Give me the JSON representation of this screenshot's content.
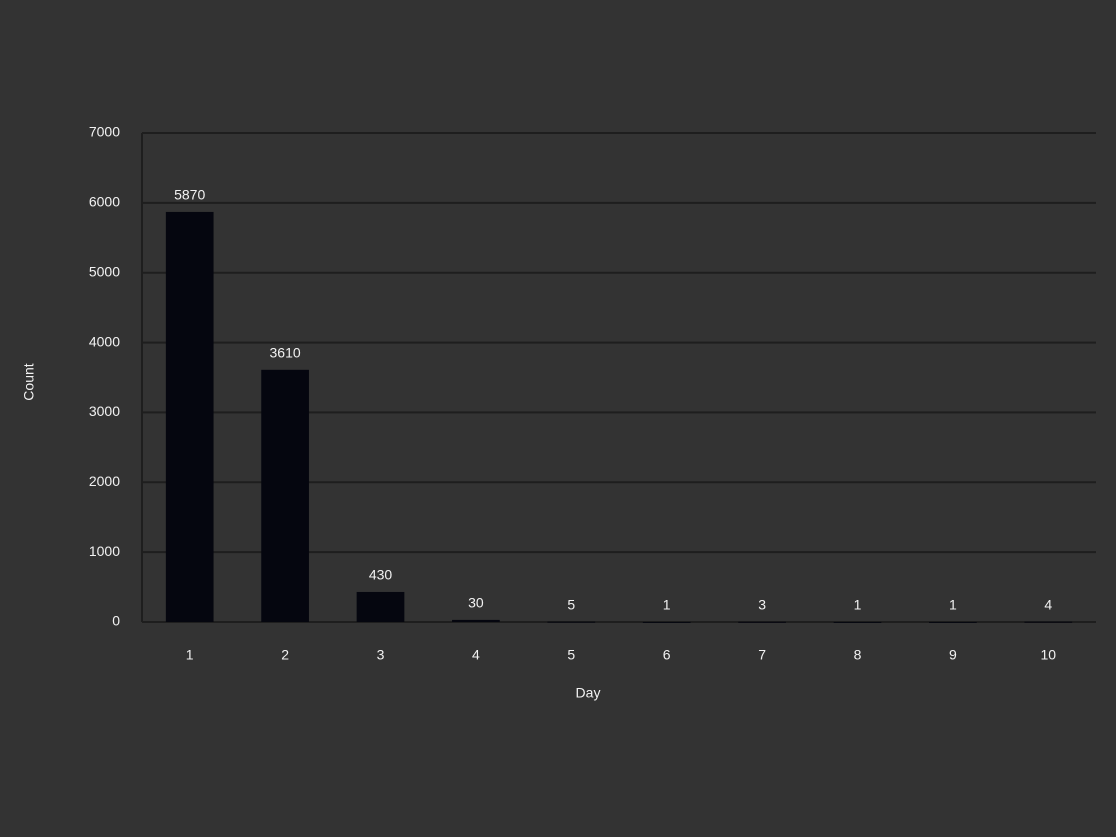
{
  "chart_data": {
    "type": "bar",
    "x_label": "Day",
    "y_label": "Count",
    "categories": [
      "1",
      "2",
      "3",
      "4",
      "5",
      "6",
      "7",
      "8",
      "9",
      "10"
    ],
    "values": [
      5870,
      3610,
      430,
      30,
      5,
      1,
      3,
      1,
      1,
      4
    ],
    "color": "#05060f",
    "ylim": [
      0,
      7000
    ],
    "yticks": [
      0,
      1000,
      2000,
      3000,
      4000,
      5000,
      6000,
      7000
    ],
    "grid": true
  }
}
